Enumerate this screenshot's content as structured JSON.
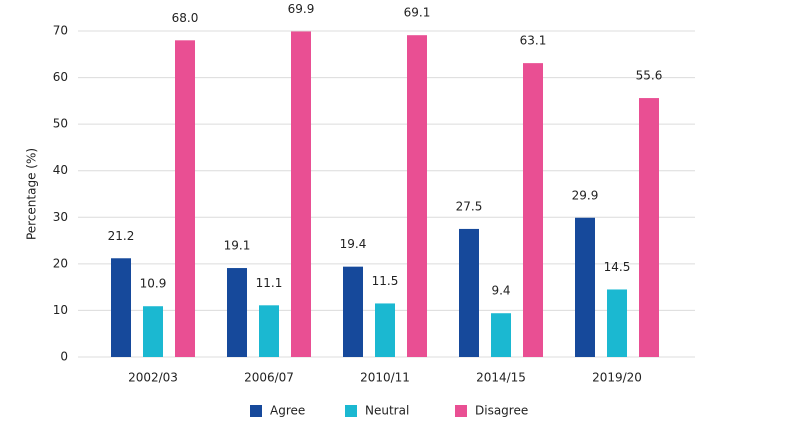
{
  "chart_data": {
    "type": "bar",
    "y_label": "Percentage (%)",
    "categories": [
      "2002/03",
      "2006/07",
      "2010/11",
      "2014/15",
      "2019/20"
    ],
    "series": [
      {
        "name": "Agree",
        "color": "#16499b",
        "values": [
          21.2,
          19.1,
          19.4,
          27.5,
          29.9
        ],
        "value_labels": [
          "21.2",
          "19.1",
          "19.4",
          "27.5",
          "29.9"
        ]
      },
      {
        "name": "Neutral",
        "color": "#1bb8d1",
        "values": [
          10.9,
          11.1,
          11.5,
          9.4,
          14.5
        ],
        "value_labels": [
          "10.9",
          "11.1",
          "11.5",
          "9.4",
          "14.5"
        ]
      },
      {
        "name": "Disagree",
        "color": "#e94f93",
        "values": [
          68.0,
          69.9,
          69.1,
          63.1,
          55.6
        ],
        "value_labels": [
          "68.0",
          "69.9",
          "69.1",
          "63.1",
          "55.6"
        ]
      }
    ],
    "ylim": [
      0,
      70
    ],
    "yticks": [
      0,
      10,
      20,
      30,
      40,
      50,
      60,
      70
    ],
    "grid": true,
    "legend": "bottom"
  }
}
